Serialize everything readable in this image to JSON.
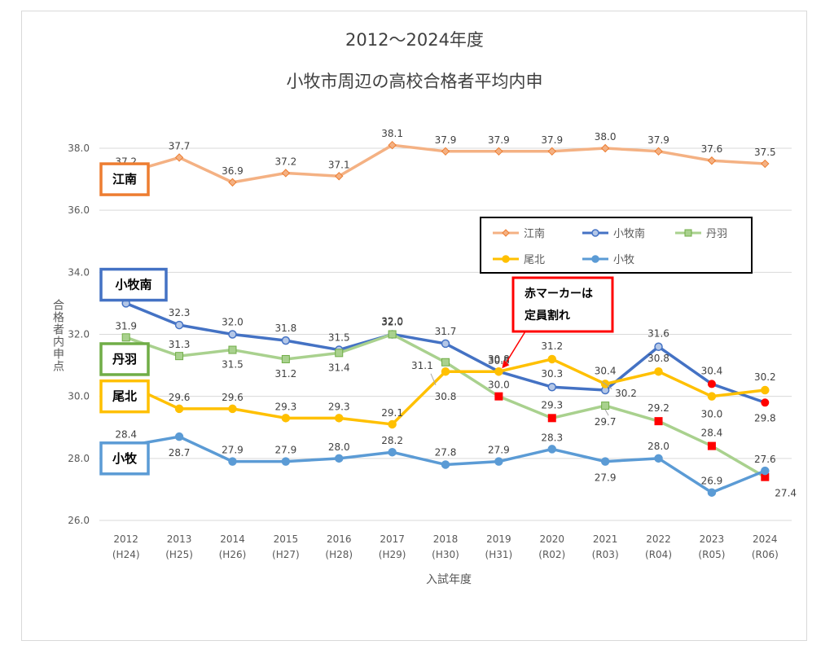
{
  "chart_data": {
    "type": "line",
    "title": "2012～2024年度",
    "subtitle": "小牧市周辺の高校合格者平均内申",
    "xlabel": "入試年度",
    "ylabel": "合格者内申点",
    "ylim": [
      26.0,
      38.0
    ],
    "yticks": [
      "26.0",
      "28.0",
      "30.0",
      "32.0",
      "34.0",
      "36.0",
      "38.0"
    ],
    "grid": true,
    "legend_position": "right, inside plot",
    "categories": [
      [
        "2012",
        "(H24)"
      ],
      [
        "2013",
        "(H25)"
      ],
      [
        "2014",
        "(H26)"
      ],
      [
        "2015",
        "(H27)"
      ],
      [
        "2016",
        "(H28)"
      ],
      [
        "2017",
        "(H29)"
      ],
      [
        "2018",
        "(H30)"
      ],
      [
        "2019",
        "(H31)"
      ],
      [
        "2020",
        "(R02)"
      ],
      [
        "2021",
        "(R03)"
      ],
      [
        "2022",
        "(R04)"
      ],
      [
        "2023",
        "(R05)"
      ],
      [
        "2024",
        "(R06)"
      ]
    ],
    "series": [
      {
        "name": "江南",
        "color": "#f4b183",
        "marker": "diamond",
        "values": [
          37.2,
          37.7,
          36.9,
          37.2,
          37.1,
          38.1,
          37.9,
          37.9,
          37.9,
          38.0,
          37.9,
          37.6,
          37.5
        ],
        "labels": [
          "37.2",
          "37.7",
          "36.9",
          "37.2",
          "37.1",
          "38.1",
          "37.9",
          "37.9",
          "37.9",
          "38.0",
          "37.9",
          "37.6",
          "37.5"
        ],
        "shortfall_years": []
      },
      {
        "name": "小牧南",
        "color": "#4472c4",
        "marker": "circle",
        "values": [
          33.0,
          32.3,
          32.0,
          31.8,
          31.5,
          32.0,
          31.7,
          30.8,
          30.3,
          30.2,
          31.6,
          30.4,
          29.8
        ],
        "labels": [
          "33.0",
          "32.3",
          "32.0",
          "31.8",
          "31.5",
          "32.0",
          "31.7",
          "30.8",
          "30.3",
          "30.2",
          "31.6",
          "30.4",
          "29.8"
        ],
        "shortfall_years": [
          7,
          11,
          12
        ]
      },
      {
        "name": "丹羽",
        "color": "#a9d18e",
        "marker": "square",
        "values": [
          31.9,
          31.3,
          31.5,
          31.2,
          31.4,
          32.0,
          31.1,
          30.0,
          29.3,
          29.7,
          29.2,
          28.4,
          27.4
        ],
        "labels": [
          "31.9",
          "31.3",
          "31.5",
          "31.2",
          "31.4",
          "32.0",
          "31.1",
          "30.0",
          "29.3",
          "29.7",
          "29.2",
          "28.4",
          "27.4"
        ],
        "shortfall_years": [
          7,
          8,
          10,
          11,
          12
        ]
      },
      {
        "name": "尾北",
        "color": "#ffc000",
        "marker": "circle",
        "values": [
          30.4,
          29.6,
          29.6,
          29.3,
          29.3,
          29.1,
          30.8,
          30.8,
          31.2,
          30.4,
          30.8,
          30.0,
          30.2
        ],
        "labels": [
          "30.4",
          "29.6",
          "29.6",
          "29.3",
          "29.3",
          "29.1",
          "30.8",
          "30.8",
          "31.2",
          "30.4",
          "30.8",
          "30.0",
          "30.2"
        ],
        "shortfall_years": []
      },
      {
        "name": "小牧",
        "color": "#5b9bd5",
        "marker": "circle",
        "values": [
          28.4,
          28.7,
          27.9,
          27.9,
          28.0,
          28.2,
          27.8,
          27.9,
          28.3,
          27.9,
          28.0,
          26.9,
          27.6
        ],
        "labels": [
          "28.4",
          "28.7",
          "27.9",
          "27.9",
          "28.0",
          "28.2",
          "27.8",
          "27.9",
          "28.3",
          "27.9",
          "28.0",
          "26.9",
          "27.6"
        ],
        "shortfall_years": []
      }
    ],
    "school_labels": [
      {
        "text": "江南",
        "color": "#ed7d31"
      },
      {
        "text": "小牧南",
        "color": "#4472c4"
      },
      {
        "text": "丹羽",
        "color": "#70ad47"
      },
      {
        "text": "尾北",
        "color": "#ffc000"
      },
      {
        "text": "小牧",
        "color": "#5b9bd5"
      }
    ],
    "annotation": {
      "lines": [
        "赤マーカーは",
        "定員割れ"
      ],
      "border_color": "#ff0000",
      "marker_color": "#ff0000"
    }
  }
}
